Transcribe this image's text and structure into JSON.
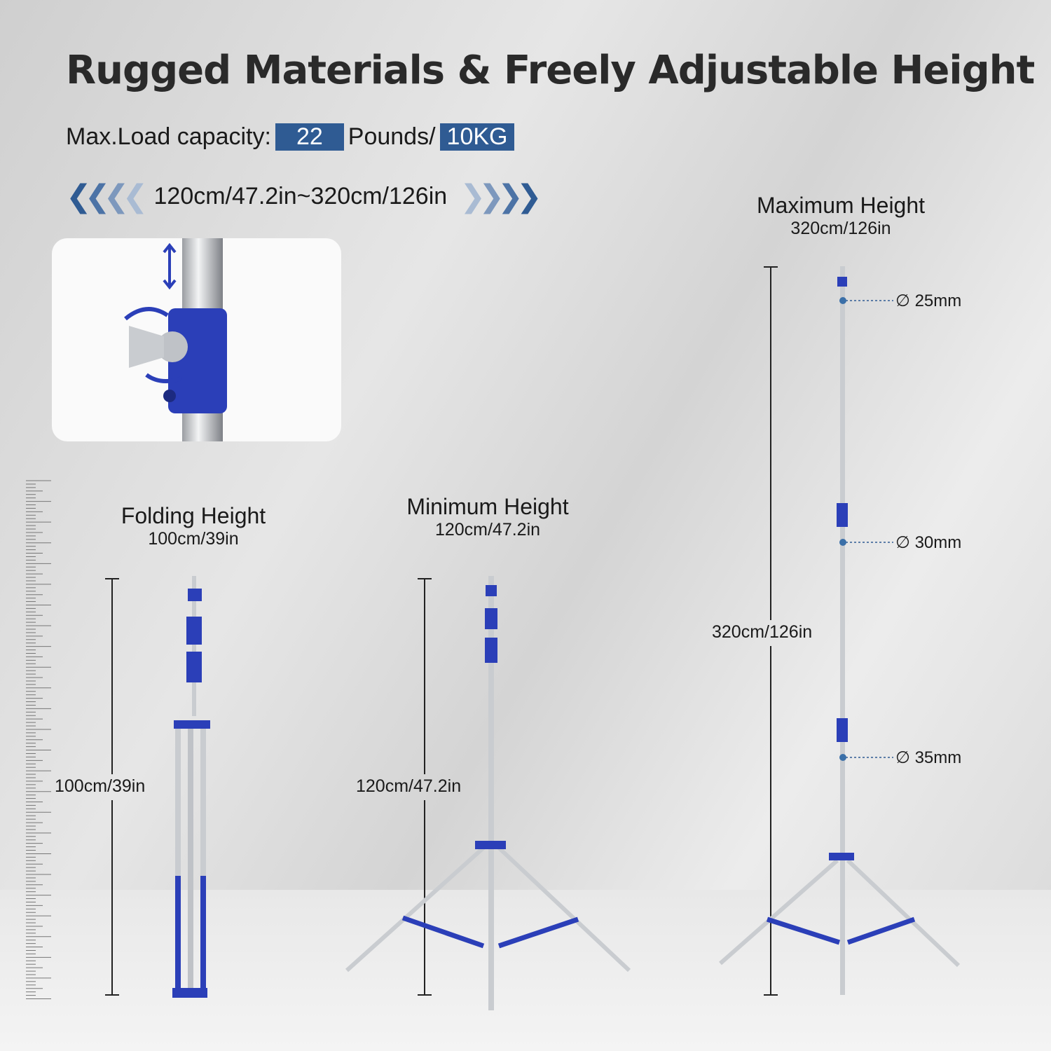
{
  "title": "Rugged Materials & Freely Adjustable Height",
  "load": {
    "label": "Max.Load capacity:",
    "pounds_value": "22",
    "pounds_unit": "Pounds/",
    "kg_value": "10KG"
  },
  "range": {
    "text": "120cm/47.2in~320cm/126in",
    "left_icon": "chevrons-left-icon",
    "right_icon": "chevrons-right-icon"
  },
  "folding": {
    "title": "Folding Height",
    "subtitle": "100cm/39in",
    "dimension": "100cm/39in"
  },
  "minimum": {
    "title": "Minimum Height",
    "subtitle": "120cm/47.2in",
    "dimension": "120cm/47.2in"
  },
  "maximum": {
    "title": "Maximum Height",
    "subtitle": "320cm/126in",
    "dimension": "320cm/126in"
  },
  "diameters": [
    "∅ 25mm",
    "∅ 30mm",
    "∅ 35mm"
  ],
  "colors": {
    "accent": "#2f5b93",
    "clamp_blue": "#2b3fb8",
    "steel": "#c9ccd0"
  }
}
